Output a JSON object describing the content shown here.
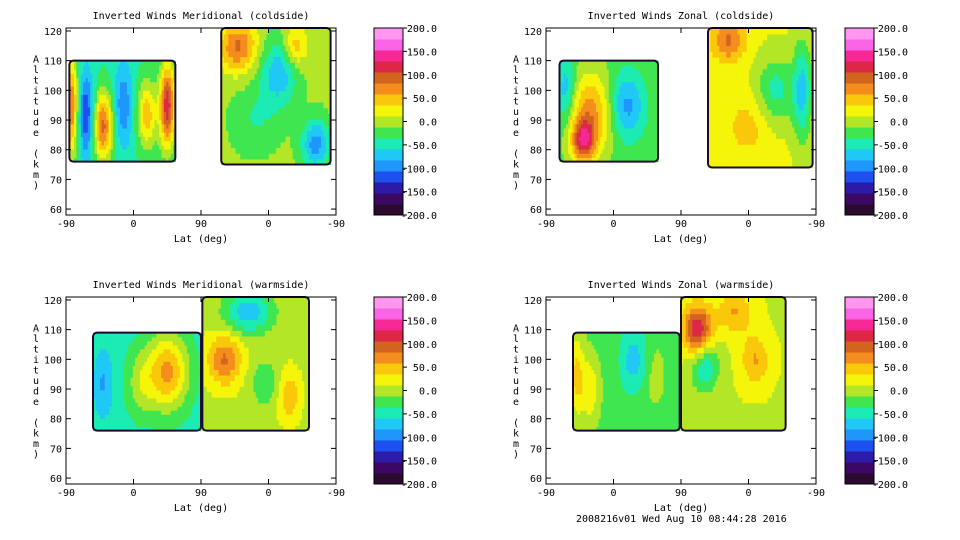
{
  "footer_text": "2008216v01 Wed Aug 10 08:44:28 2016",
  "colorbar": {
    "min": -200,
    "max": 200,
    "tick_labels": [
      "200.0",
      "150.0",
      "100.0",
      "50.0",
      "0.0",
      "-50.0",
      "-100.0",
      "-150.0",
      "-200.0"
    ],
    "colors": [
      "#2a0a2e",
      "#3c0864",
      "#2b1ba8",
      "#1e50f0",
      "#1e96fa",
      "#20c8f5",
      "#1cebb4",
      "#40e650",
      "#b4e628",
      "#f5f50a",
      "#fac80a",
      "#f58c1e",
      "#d2641e",
      "#dc2846",
      "#f52896",
      "#fa64e6",
      "#ff96f0"
    ]
  },
  "chart_data": [
    {
      "type": "heatmap",
      "title": "Inverted Winds Meridional (coldside)",
      "xlabel": "Lat (deg)",
      "ylabel": "Altitude (km)",
      "x_tick_labels": [
        "-90",
        "0",
        "90",
        "0",
        "-90"
      ],
      "xlim": [
        0,
        4
      ],
      "y_ticks": [
        60,
        70,
        80,
        90,
        100,
        110,
        120
      ],
      "ylim": [
        58,
        121
      ],
      "colorbar_ticks": [
        "200.0",
        "150.0",
        "100.0",
        "50.0",
        "0.0",
        "-50.0",
        "-100.0",
        "-150.0",
        "-200.0"
      ],
      "regions": [
        {
          "x_start": 0.05,
          "x_end": 1.62,
          "bottom_km": 76,
          "top_km": 110,
          "base_value": -40,
          "blobs": [
            {
              "x": 0.08,
              "y": 95,
              "sx": 0.07,
              "sy": 12,
              "amp": 120
            },
            {
              "x": 0.3,
              "y": 92,
              "sx": 0.08,
              "sy": 10,
              "amp": -90
            },
            {
              "x": 0.55,
              "y": 88,
              "sx": 0.1,
              "sy": 8,
              "amp": 130
            },
            {
              "x": 0.85,
              "y": 95,
              "sx": 0.1,
              "sy": 10,
              "amp": -60
            },
            {
              "x": 1.2,
              "y": 92,
              "sx": 0.1,
              "sy": 8,
              "amp": 90
            },
            {
              "x": 1.5,
              "y": 95,
              "sx": 0.08,
              "sy": 10,
              "amp": 160
            }
          ]
        },
        {
          "x_start": 2.3,
          "x_end": 3.92,
          "bottom_km": 75,
          "top_km": 121,
          "base_value": -5,
          "blobs": [
            {
              "x": 2.55,
              "y": 115,
              "sx": 0.2,
              "sy": 6,
              "amp": 90
            },
            {
              "x": 3.15,
              "y": 106,
              "sx": 0.2,
              "sy": 8,
              "amp": -70
            },
            {
              "x": 3.4,
              "y": 115,
              "sx": 0.12,
              "sy": 5,
              "amp": 60
            },
            {
              "x": 2.8,
              "y": 90,
              "sx": 0.25,
              "sy": 8,
              "amp": -30
            },
            {
              "x": 3.7,
              "y": 82,
              "sx": 0.15,
              "sy": 6,
              "amp": -90
            }
          ]
        }
      ]
    },
    {
      "type": "heatmap",
      "title": "Inverted Winds Zonal (coldside)",
      "xlabel": "Lat (deg)",
      "ylabel": "Altitude (km)",
      "x_tick_labels": [
        "-90",
        "0",
        "90",
        "0",
        "-90"
      ],
      "xlim": [
        0,
        4
      ],
      "y_ticks": [
        60,
        70,
        80,
        90,
        100,
        110,
        120
      ],
      "ylim": [
        58,
        121
      ],
      "colorbar_ticks": [
        "200.0",
        "150.0",
        "100.0",
        "50.0",
        "0.0",
        "-50.0",
        "-100.0",
        "-150.0",
        "-200.0"
      ],
      "regions": [
        {
          "x_start": 0.2,
          "x_end": 1.66,
          "bottom_km": 76,
          "top_km": 110,
          "base_value": -20,
          "blobs": [
            {
              "x": 0.65,
              "y": 92,
              "sx": 0.22,
              "sy": 10,
              "amp": 90
            },
            {
              "x": 0.55,
              "y": 83,
              "sx": 0.12,
              "sy": 5,
              "amp": 110
            },
            {
              "x": 1.2,
              "y": 95,
              "sx": 0.18,
              "sy": 8,
              "amp": -70
            },
            {
              "x": 0.3,
              "y": 100,
              "sx": 0.1,
              "sy": 8,
              "amp": -60
            }
          ]
        },
        {
          "x_start": 2.4,
          "x_end": 3.95,
          "bottom_km": 74,
          "top_km": 121,
          "base_value": 15,
          "blobs": [
            {
              "x": 2.7,
              "y": 117,
              "sx": 0.18,
              "sy": 5,
              "amp": 70
            },
            {
              "x": 3.4,
              "y": 100,
              "sx": 0.2,
              "sy": 8,
              "amp": -60
            },
            {
              "x": 3.0,
              "y": 88,
              "sx": 0.25,
              "sy": 8,
              "amp": 30
            },
            {
              "x": 3.8,
              "y": 100,
              "sx": 0.1,
              "sy": 12,
              "amp": -80
            }
          ]
        }
      ]
    },
    {
      "type": "heatmap",
      "title": "Inverted Winds Meridional (warmside)",
      "xlabel": "Lat (deg)",
      "ylabel": "Altitude (km)",
      "x_tick_labels": [
        "-90",
        "0",
        "90",
        "0",
        "-90"
      ],
      "xlim": [
        0,
        4
      ],
      "y_ticks": [
        60,
        70,
        80,
        90,
        100,
        110,
        120
      ],
      "ylim": [
        58,
        121
      ],
      "colorbar_ticks": [
        "200.0",
        "150.0",
        "100.0",
        "50.0",
        "0.0",
        "-50.0",
        "-100.0",
        "-150.0",
        "-200.0"
      ],
      "regions": [
        {
          "x_start": 0.4,
          "x_end": 2.0,
          "bottom_km": 76,
          "top_km": 109,
          "base_value": -45,
          "blobs": [
            {
              "x": 1.5,
              "y": 96,
              "sx": 0.22,
              "sy": 9,
              "amp": 110
            },
            {
              "x": 1.1,
              "y": 92,
              "sx": 0.15,
              "sy": 8,
              "amp": 40
            },
            {
              "x": 0.55,
              "y": 92,
              "sx": 0.1,
              "sy": 8,
              "amp": -40
            }
          ]
        },
        {
          "x_start": 2.02,
          "x_end": 3.6,
          "bottom_km": 76,
          "top_km": 121,
          "base_value": 5,
          "blobs": [
            {
              "x": 2.35,
              "y": 100,
              "sx": 0.18,
              "sy": 6,
              "amp": 80
            },
            {
              "x": 2.7,
              "y": 116,
              "sx": 0.25,
              "sy": 5,
              "amp": -80
            },
            {
              "x": 2.95,
              "y": 92,
              "sx": 0.15,
              "sy": 5,
              "amp": -40
            },
            {
              "x": 3.3,
              "y": 88,
              "sx": 0.12,
              "sy": 6,
              "amp": 50
            }
          ]
        }
      ]
    },
    {
      "type": "heatmap",
      "title": "Inverted Winds Zonal (warmside)",
      "xlabel": "Lat (deg)",
      "ylabel": "Altitude (km)",
      "x_tick_labels": [
        "-90",
        "0",
        "90",
        "0",
        "-90"
      ],
      "xlim": [
        0,
        4
      ],
      "y_ticks": [
        60,
        70,
        80,
        90,
        100,
        110,
        120
      ],
      "ylim": [
        58,
        121
      ],
      "colorbar_ticks": [
        "200.0",
        "150.0",
        "100.0",
        "50.0",
        "0.0",
        "-50.0",
        "-100.0",
        "-150.0",
        "-200.0"
      ],
      "regions": [
        {
          "x_start": 0.4,
          "x_end": 1.98,
          "bottom_km": 76,
          "top_km": 109,
          "base_value": -20,
          "blobs": [
            {
              "x": 0.45,
              "y": 95,
              "sx": 0.08,
              "sy": 10,
              "amp": 60
            },
            {
              "x": 0.65,
              "y": 90,
              "sx": 0.1,
              "sy": 8,
              "amp": 50
            },
            {
              "x": 1.3,
              "y": 100,
              "sx": 0.15,
              "sy": 8,
              "amp": -50
            },
            {
              "x": 1.6,
              "y": 95,
              "sx": 0.12,
              "sy": 8,
              "amp": 20
            }
          ]
        },
        {
          "x_start": 2.0,
          "x_end": 3.55,
          "bottom_km": 76,
          "top_km": 121,
          "base_value": 10,
          "blobs": [
            {
              "x": 2.25,
              "y": 110,
              "sx": 0.15,
              "sy": 6,
              "amp": 120
            },
            {
              "x": 2.35,
              "y": 98,
              "sx": 0.15,
              "sy": 6,
              "amp": -70
            },
            {
              "x": 2.8,
              "y": 116,
              "sx": 0.18,
              "sy": 5,
              "amp": 50
            },
            {
              "x": 3.1,
              "y": 100,
              "sx": 0.15,
              "sy": 6,
              "amp": 50
            }
          ]
        }
      ]
    }
  ]
}
